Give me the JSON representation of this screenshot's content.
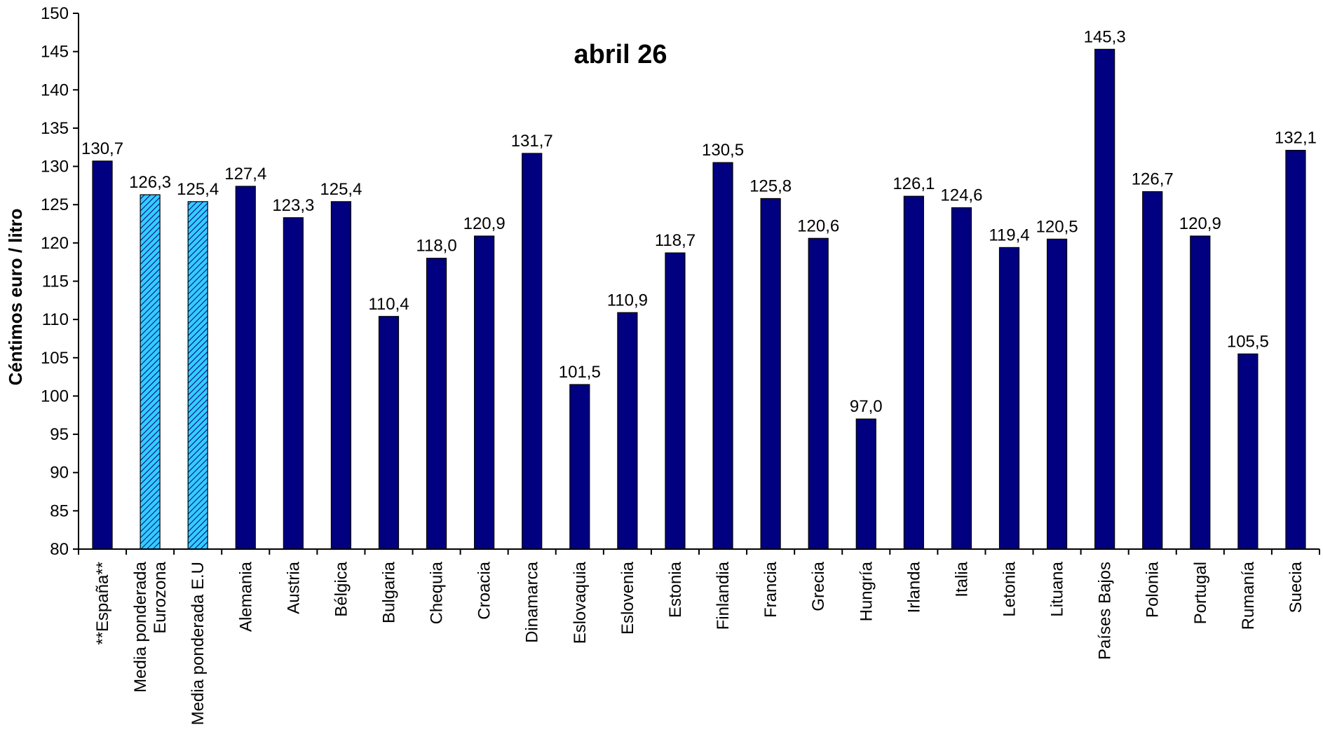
{
  "chart_data": {
    "type": "bar",
    "title": "abril 26",
    "xlabel": "",
    "ylabel": "Céntimos euro / litro",
    "ylim": [
      80,
      150
    ],
    "yticks": [
      "80",
      "85",
      "90",
      "95",
      "100",
      "105",
      "110",
      "115",
      "120",
      "125",
      "130",
      "135",
      "140",
      "145",
      "150"
    ],
    "grid": false,
    "legend": "none",
    "categories": [
      [
        "**España**"
      ],
      [
        "Media ponderada",
        "Eurozona"
      ],
      [
        "Media ponderada E.U"
      ],
      [
        "Alemania"
      ],
      [
        "Austria"
      ],
      [
        "Bélgica"
      ],
      [
        "Bulgaria"
      ],
      [
        "Chequia"
      ],
      [
        "Croacia"
      ],
      [
        "Dinamarca"
      ],
      [
        "Eslovaquia"
      ],
      [
        "Eslovenia"
      ],
      [
        "Estonia"
      ],
      [
        "Finlandia"
      ],
      [
        "Francia"
      ],
      [
        "Grecia"
      ],
      [
        "Hungría"
      ],
      [
        "Irlanda"
      ],
      [
        "Italia"
      ],
      [
        "Letonia"
      ],
      [
        "Lituana"
      ],
      [
        "Países Bajos"
      ],
      [
        "Polonia"
      ],
      [
        "Portugal"
      ],
      [
        "Rumanía"
      ],
      [
        "Suecia"
      ]
    ],
    "values": [
      130.7,
      126.3,
      125.4,
      127.4,
      123.3,
      125.4,
      110.4,
      118.0,
      120.9,
      131.7,
      101.5,
      110.9,
      118.7,
      130.5,
      125.8,
      120.6,
      97.0,
      126.1,
      124.6,
      119.4,
      120.5,
      145.3,
      126.7,
      120.9,
      105.5,
      132.1
    ],
    "value_labels": [
      "130,7",
      "126,3",
      "125,4",
      "127,4",
      "123,3",
      "125,4",
      "110,4",
      "118,0",
      "120,9",
      "131,7",
      "101,5",
      "110,9",
      "118,7",
      "130,5",
      "125,8",
      "120,6",
      "97,0",
      "126,1",
      "124,6",
      "119,4",
      "120,5",
      "145,3",
      "126,7",
      "120,9",
      "105,5",
      "132,1"
    ],
    "highlighted": [
      false,
      true,
      true,
      false,
      false,
      false,
      false,
      false,
      false,
      false,
      false,
      false,
      false,
      false,
      false,
      false,
      false,
      false,
      false,
      false,
      false,
      false,
      false,
      false,
      false,
      false
    ],
    "colors": {
      "bar": "#000080",
      "highlight_bar": "#33CCFF",
      "highlight_hatch": "#000080",
      "axis": "#000000"
    }
  }
}
